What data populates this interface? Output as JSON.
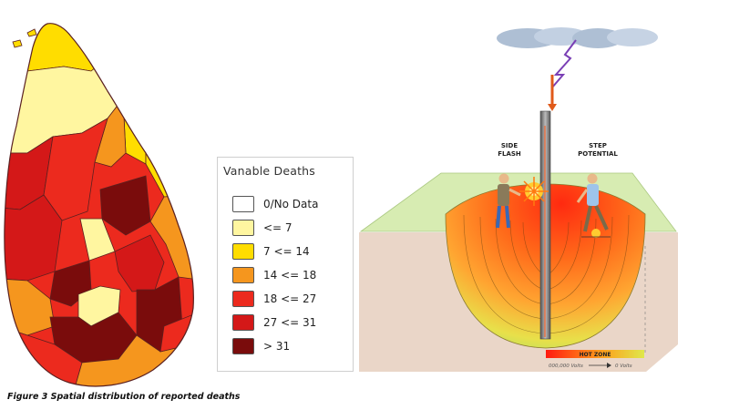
{
  "legend": {
    "title": "Vanable Deaths",
    "items": [
      {
        "label": "0/No Data",
        "color": "#ffffff"
      },
      {
        "label": "<= 7",
        "color": "#fff6a0"
      },
      {
        "label": "7 <= 14",
        "color": "#ffdd00"
      },
      {
        "label": "14 <= 18",
        "color": "#f5961e"
      },
      {
        "label": "18 <= 27",
        "color": "#ec2a1e"
      },
      {
        "label": "27 <= 31",
        "color": "#d41818"
      },
      {
        "label": "> 31",
        "color": "#7a0c0c"
      }
    ]
  },
  "diagram": {
    "side_flash": [
      "SIDE",
      "FLASH"
    ],
    "step_potential": [
      "STEP",
      "POTENTIAL"
    ],
    "hot_zone": "HOT ZONE",
    "voltage_left": "000,000 Volts",
    "voltage_right": "0 Volts"
  },
  "caption": "Figure 3 Spatial distribution of reported deaths"
}
